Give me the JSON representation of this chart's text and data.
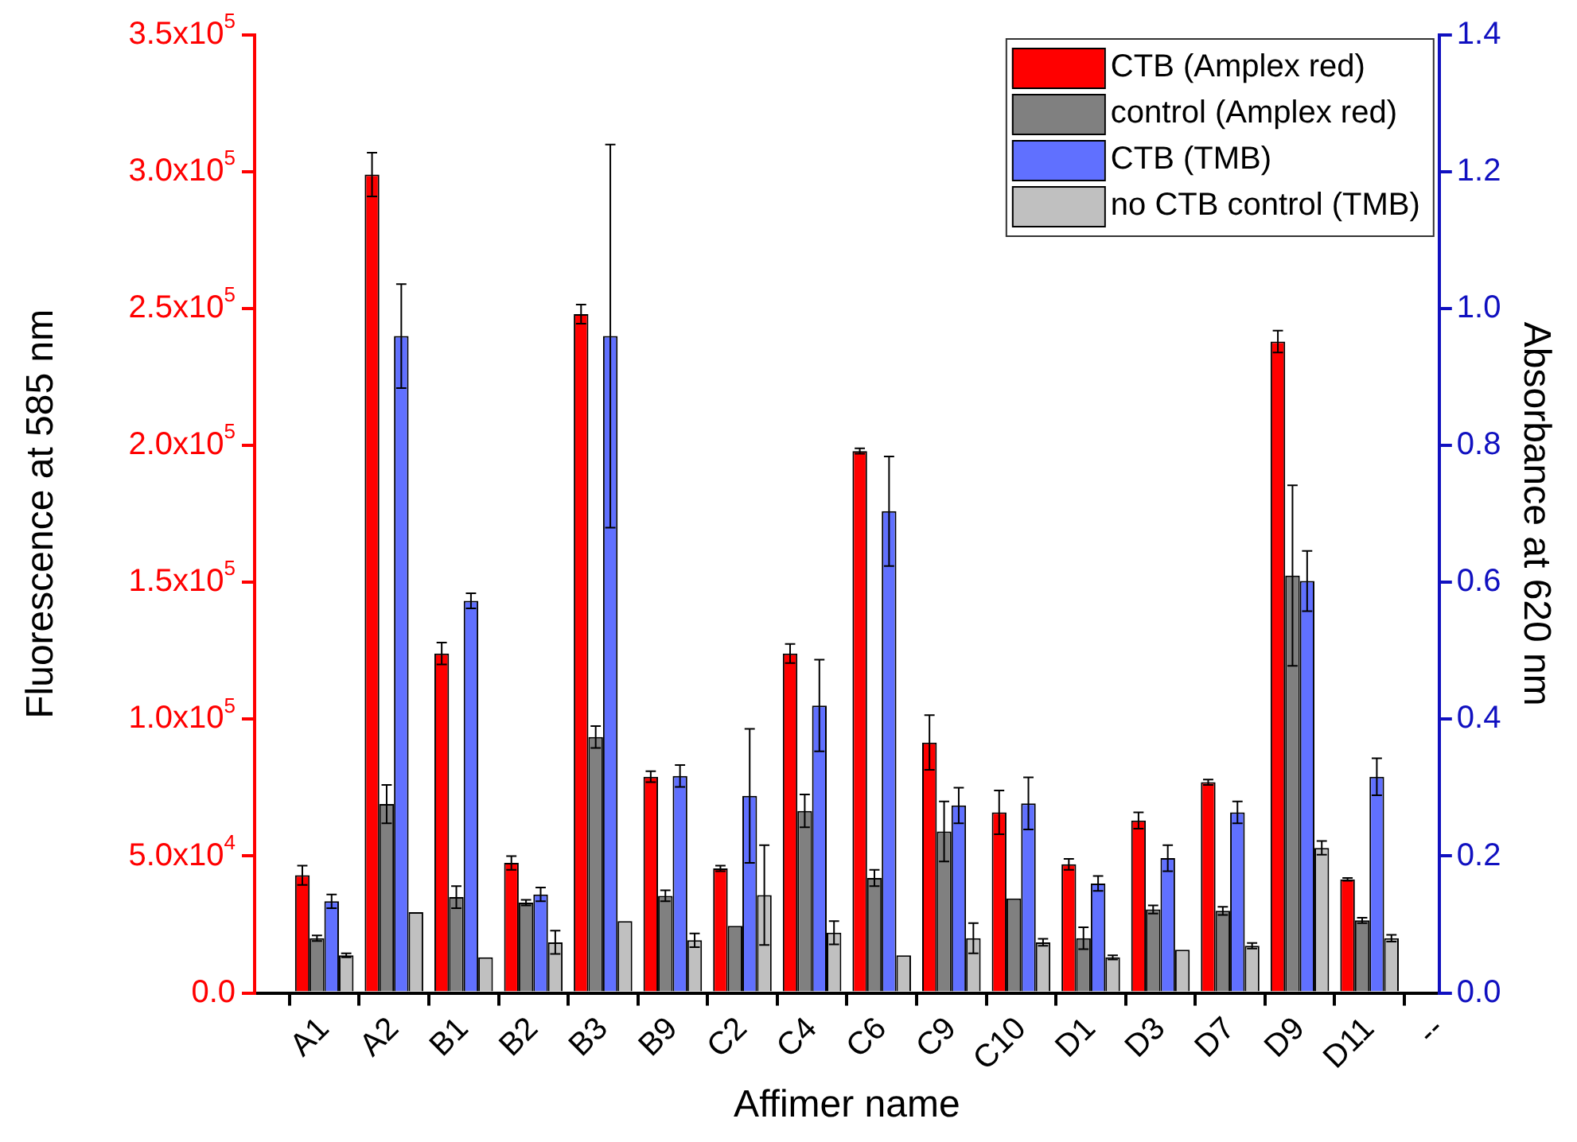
{
  "chart_data": {
    "type": "bar",
    "xlabel": "Affimer name",
    "ylabel": "Fluorescence at 585 nm",
    "y2label": "Absorbance at 620 nm",
    "categories": [
      null,
      "A1",
      "A2",
      "B1",
      "B2",
      "B3",
      "B9",
      "C2",
      "C4",
      "C6",
      "C9",
      "C10",
      "D1",
      "D3",
      "D7",
      "D9",
      "D11",
      "--"
    ],
    "series": [
      {
        "name": "CTB (Amplex red)",
        "color": "#ff0000",
        "values": [
          null,
          43000,
          299000,
          124000,
          47500,
          248000,
          79000,
          45500,
          124000,
          198000,
          91500,
          66000,
          47000,
          63000,
          77000,
          238000,
          41500,
          null
        ],
        "errors": [
          null,
          3500,
          8000,
          4000,
          2500,
          3500,
          2000,
          1000,
          3500,
          1000,
          10000,
          8000,
          2000,
          3000,
          1000,
          4000,
          500,
          null
        ]
      },
      {
        "name": "control (Amplex red)",
        "color": "#808080",
        "values": [
          null,
          20000,
          69000,
          35000,
          33000,
          93500,
          35500,
          24500,
          66500,
          42000,
          59000,
          34500,
          20000,
          30500,
          30000,
          152500,
          26500,
          null
        ],
        "errors": [
          null,
          1000,
          7000,
          4000,
          1000,
          4000,
          2000,
          null,
          6000,
          3000,
          11000,
          null,
          4000,
          1500,
          1500,
          33000,
          1000,
          null
        ]
      },
      {
        "name": "CTB (TMB)",
        "color": "#6070ff",
        "axis": "y2",
        "values": [
          null,
          0.134,
          0.96,
          0.573,
          0.144,
          0.96,
          0.317,
          0.288,
          0.42,
          0.704,
          0.274,
          0.277,
          0.16,
          0.197,
          0.264,
          0.602,
          0.316,
          null
        ],
        "errors": [
          null,
          0.01,
          0.076,
          0.011,
          0.01,
          0.28,
          0.016,
          0.098,
          0.067,
          0.08,
          0.026,
          0.038,
          0.011,
          0.019,
          0.016,
          0.044,
          0.027,
          null
        ]
      },
      {
        "name": "no CTB control (TMB)",
        "color": "#c0c0c0",
        "axis": "y2",
        "values": [
          null,
          0.055,
          0.118,
          0.052,
          0.074,
          0.105,
          0.077,
          0.143,
          0.088,
          0.055,
          0.08,
          0.074,
          0.052,
          0.063,
          0.069,
          0.212,
          0.08,
          null
        ],
        "errors": [
          null,
          0.003,
          null,
          null,
          0.017,
          null,
          0.01,
          0.073,
          0.017,
          null,
          0.022,
          0.005,
          0.003,
          null,
          0.004,
          0.01,
          0.005,
          null
        ]
      }
    ],
    "ylim": [
      0,
      350000
    ],
    "yticks": [
      {
        "value": 0,
        "label": "0.0"
      },
      {
        "value": 50000,
        "label": "5.0x10$^{4}$"
      },
      {
        "value": 100000,
        "label": "1.0x10$^{5}$"
      },
      {
        "value": 150000,
        "label": "1.5x10$^{5}$"
      },
      {
        "value": 200000,
        "label": "2.0x10$^{5}$"
      },
      {
        "value": 250000,
        "label": "2.5x10$^{5}$"
      },
      {
        "value": 300000,
        "label": "3.0x10$^{5}$"
      },
      {
        "value": 350000,
        "label": "3.5x10$^{5}$"
      }
    ],
    "y2lim": [
      0,
      1.4
    ],
    "y2ticks": [
      {
        "value": 0,
        "label": "0.0"
      },
      0.2,
      0.4,
      0.6,
      0.8,
      {
        "value": 1,
        "label": "1.0"
      },
      1.2,
      1.4
    ],
    "grid": false,
    "legend": "top right"
  }
}
